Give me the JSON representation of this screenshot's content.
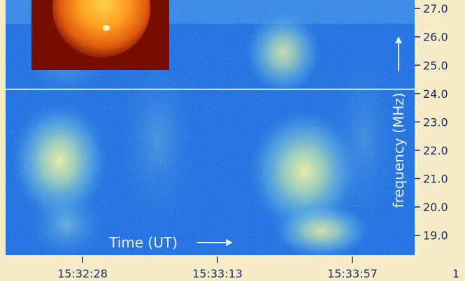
{
  "chart_data": {
    "type": "heatmap",
    "title": "",
    "xlabel": "Time (UT)",
    "ylabel": "frequency (MHz)",
    "x_ticks": [
      "15:32:28",
      "15:33:13",
      "15:33:57",
      "1"
    ],
    "y_ticks": [
      27.0,
      26.0,
      25.0,
      24.0,
      23.0,
      22.0,
      21.0,
      20.0,
      19.0
    ],
    "y_tick_labels": [
      "27.0",
      "26.0",
      "25.0",
      "24.0",
      "23.0",
      "22.0",
      "21.0",
      "20.0",
      "19.0"
    ],
    "ylim": [
      18.3,
      27.3
    ],
    "colors": {
      "background": "#1f6fe0",
      "low_intensity": "#3a8fe8",
      "mid_intensity": "#8fd3c8",
      "high_intensity": "#f2f09a",
      "axis_panel": "#f6ecc7",
      "tick_text": "#1e2a6b",
      "annotation_text": "#e8f1ff"
    },
    "interference_line_frequency": 24.15,
    "inset": {
      "icon": "sun-image-icon"
    }
  }
}
